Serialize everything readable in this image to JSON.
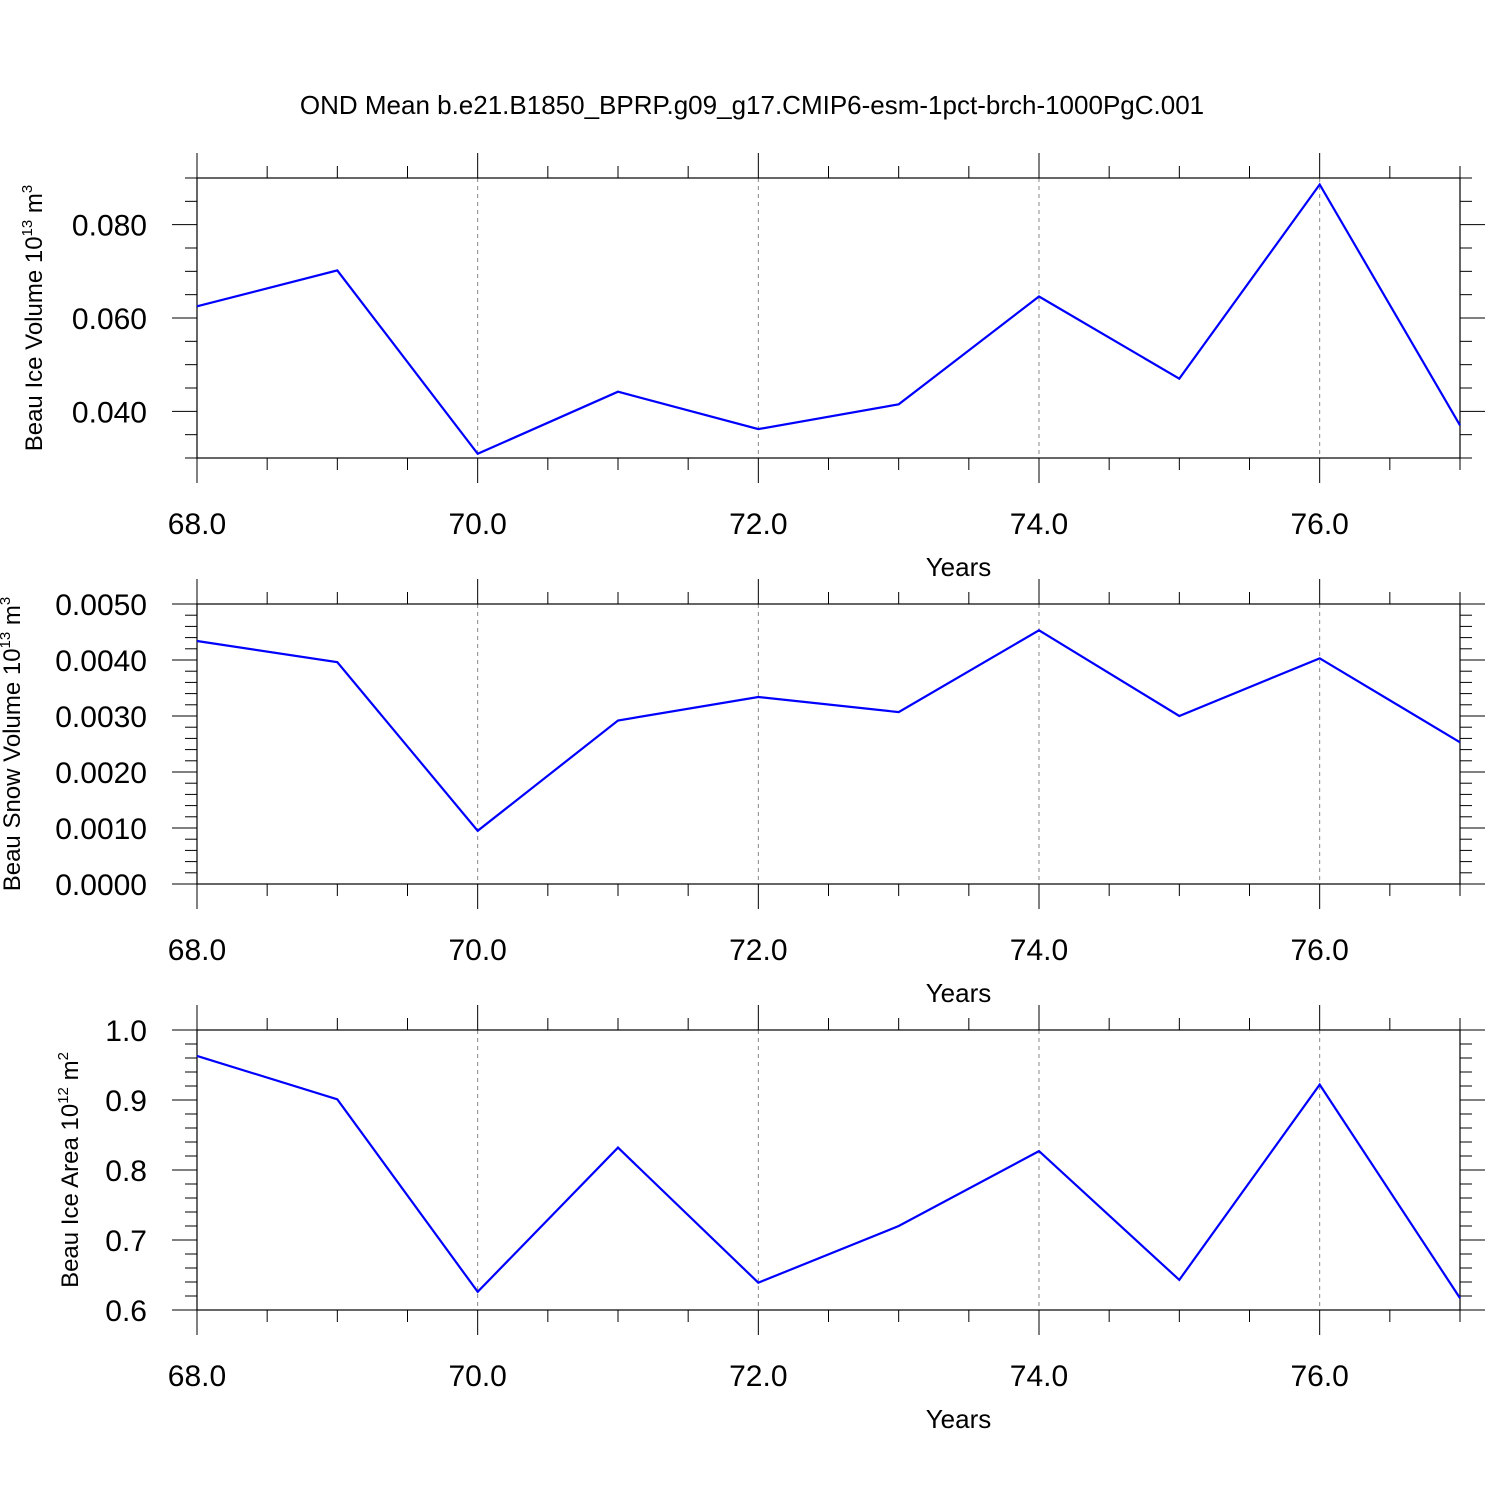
{
  "chart_data": {
    "title": "OND Mean b.e21.B1850_BPRP.g09_g17.CMIP6-esm-1pct-brch-1000PgC.001",
    "panels": [
      {
        "type": "line",
        "xlabel": "Years",
        "ylabel": "Beau Ice Volume 10",
        "ylabel_exp": "13",
        "ylabel_unit": " m",
        "ylabel_unit_exp": "3",
        "xlim": [
          68,
          77
        ],
        "ylim": [
          0.03,
          0.09
        ],
        "xticks": [
          68,
          70,
          72,
          74,
          76
        ],
        "xtick_labels": [
          "68.0",
          "70.0",
          "72.0",
          "74.0",
          "76.0"
        ],
        "yticks": [
          0.04,
          0.06,
          0.08
        ],
        "ytick_labels": [
          "0.040",
          "0.060",
          "0.080"
        ],
        "x_minor_step": 0.5,
        "y_minor_step": 0.005,
        "grid_x": [
          70,
          72,
          74,
          76
        ],
        "color": "#0000ff",
        "x": [
          68,
          69,
          70,
          71,
          72,
          73,
          74,
          75,
          76,
          77
        ],
        "y": [
          0.0625,
          0.0702,
          0.0309,
          0.0442,
          0.0362,
          0.0415,
          0.0646,
          0.047,
          0.0886,
          0.037
        ]
      },
      {
        "type": "line",
        "xlabel": "Years",
        "ylabel": "Beau Snow Volume 10",
        "ylabel_exp": "13",
        "ylabel_unit": " m",
        "ylabel_unit_exp": "3",
        "xlim": [
          68,
          77
        ],
        "ylim": [
          0.0,
          0.005
        ],
        "xticks": [
          68,
          70,
          72,
          74,
          76
        ],
        "xtick_labels": [
          "68.0",
          "70.0",
          "72.0",
          "74.0",
          "76.0"
        ],
        "yticks": [
          0.0,
          0.001,
          0.002,
          0.003,
          0.004,
          0.005
        ],
        "ytick_labels": [
          "0.0000",
          "0.0010",
          "0.0020",
          "0.0030",
          "0.0040",
          "0.0050"
        ],
        "x_minor_step": 0.5,
        "y_minor_step": 0.0002,
        "grid_x": [
          70,
          72,
          74,
          76
        ],
        "color": "#0000ff",
        "x": [
          68,
          69,
          70,
          71,
          72,
          73,
          74,
          75,
          76,
          77
        ],
        "y": [
          0.00434,
          0.00396,
          0.00095,
          0.00292,
          0.00334,
          0.00307,
          0.00453,
          0.003,
          0.00403,
          0.00253
        ]
      },
      {
        "type": "line",
        "xlabel": "Years",
        "ylabel": "Beau Ice Area 10",
        "ylabel_exp": "12",
        "ylabel_unit": " m",
        "ylabel_unit_exp": "2",
        "xlim": [
          68,
          77
        ],
        "ylim": [
          0.6,
          1.0
        ],
        "xticks": [
          68,
          70,
          72,
          74,
          76
        ],
        "xtick_labels": [
          "68.0",
          "70.0",
          "72.0",
          "74.0",
          "76.0"
        ],
        "yticks": [
          0.6,
          0.7,
          0.8,
          0.9,
          1.0
        ],
        "ytick_labels": [
          "0.6",
          "0.7",
          "0.8",
          "0.9",
          "1.0"
        ],
        "x_minor_step": 0.5,
        "y_minor_step": 0.02,
        "grid_x": [
          70,
          72,
          74,
          76
        ],
        "color": "#0000ff",
        "x": [
          68,
          69,
          70,
          71,
          72,
          73,
          74,
          75,
          76,
          77
        ],
        "y": [
          0.963,
          0.901,
          0.626,
          0.832,
          0.639,
          0.72,
          0.827,
          0.643,
          0.922,
          0.617
        ]
      }
    ]
  }
}
